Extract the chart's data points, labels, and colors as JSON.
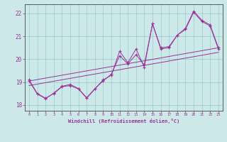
{
  "xlabel": "Windchill (Refroidissement éolien,°C)",
  "background_color": "#cce8e8",
  "grid_color": "#99cccc",
  "line_color": "#993399",
  "xlim": [
    -0.5,
    23.5
  ],
  "ylim": [
    17.75,
    22.4
  ],
  "xticks": [
    0,
    1,
    2,
    3,
    4,
    5,
    6,
    7,
    8,
    9,
    10,
    11,
    12,
    13,
    14,
    15,
    16,
    17,
    18,
    19,
    20,
    21,
    22,
    23
  ],
  "yticks": [
    18,
    19,
    20,
    21,
    22
  ],
  "series1_x": [
    0,
    1,
    2,
    3,
    4,
    5,
    6,
    7,
    8,
    9,
    10,
    11,
    12,
    13,
    14,
    15,
    16,
    17,
    18,
    19,
    20,
    21,
    22,
    23
  ],
  "series1_y": [
    19.1,
    18.5,
    18.3,
    18.5,
    18.8,
    18.85,
    18.7,
    18.3,
    18.7,
    19.1,
    19.3,
    20.35,
    19.85,
    20.45,
    19.65,
    21.55,
    20.45,
    20.5,
    21.05,
    21.35,
    22.1,
    21.7,
    21.5,
    20.5
  ],
  "series2_x": [
    0,
    1,
    2,
    3,
    4,
    5,
    6,
    7,
    8,
    9,
    10,
    11,
    12,
    13,
    14,
    15,
    16,
    17,
    18,
    19,
    20,
    21,
    22,
    23
  ],
  "series2_y": [
    19.05,
    18.48,
    18.28,
    18.52,
    18.82,
    18.9,
    18.72,
    18.32,
    18.72,
    19.05,
    19.35,
    20.15,
    19.8,
    20.2,
    19.75,
    21.55,
    20.5,
    20.55,
    21.05,
    21.3,
    22.05,
    21.65,
    21.45,
    20.45
  ],
  "trend_x": [
    0,
    23
  ],
  "trend_y": [
    18.85,
    20.3
  ],
  "trend2_x": [
    0,
    23
  ],
  "trend2_y": [
    19.05,
    20.5
  ]
}
